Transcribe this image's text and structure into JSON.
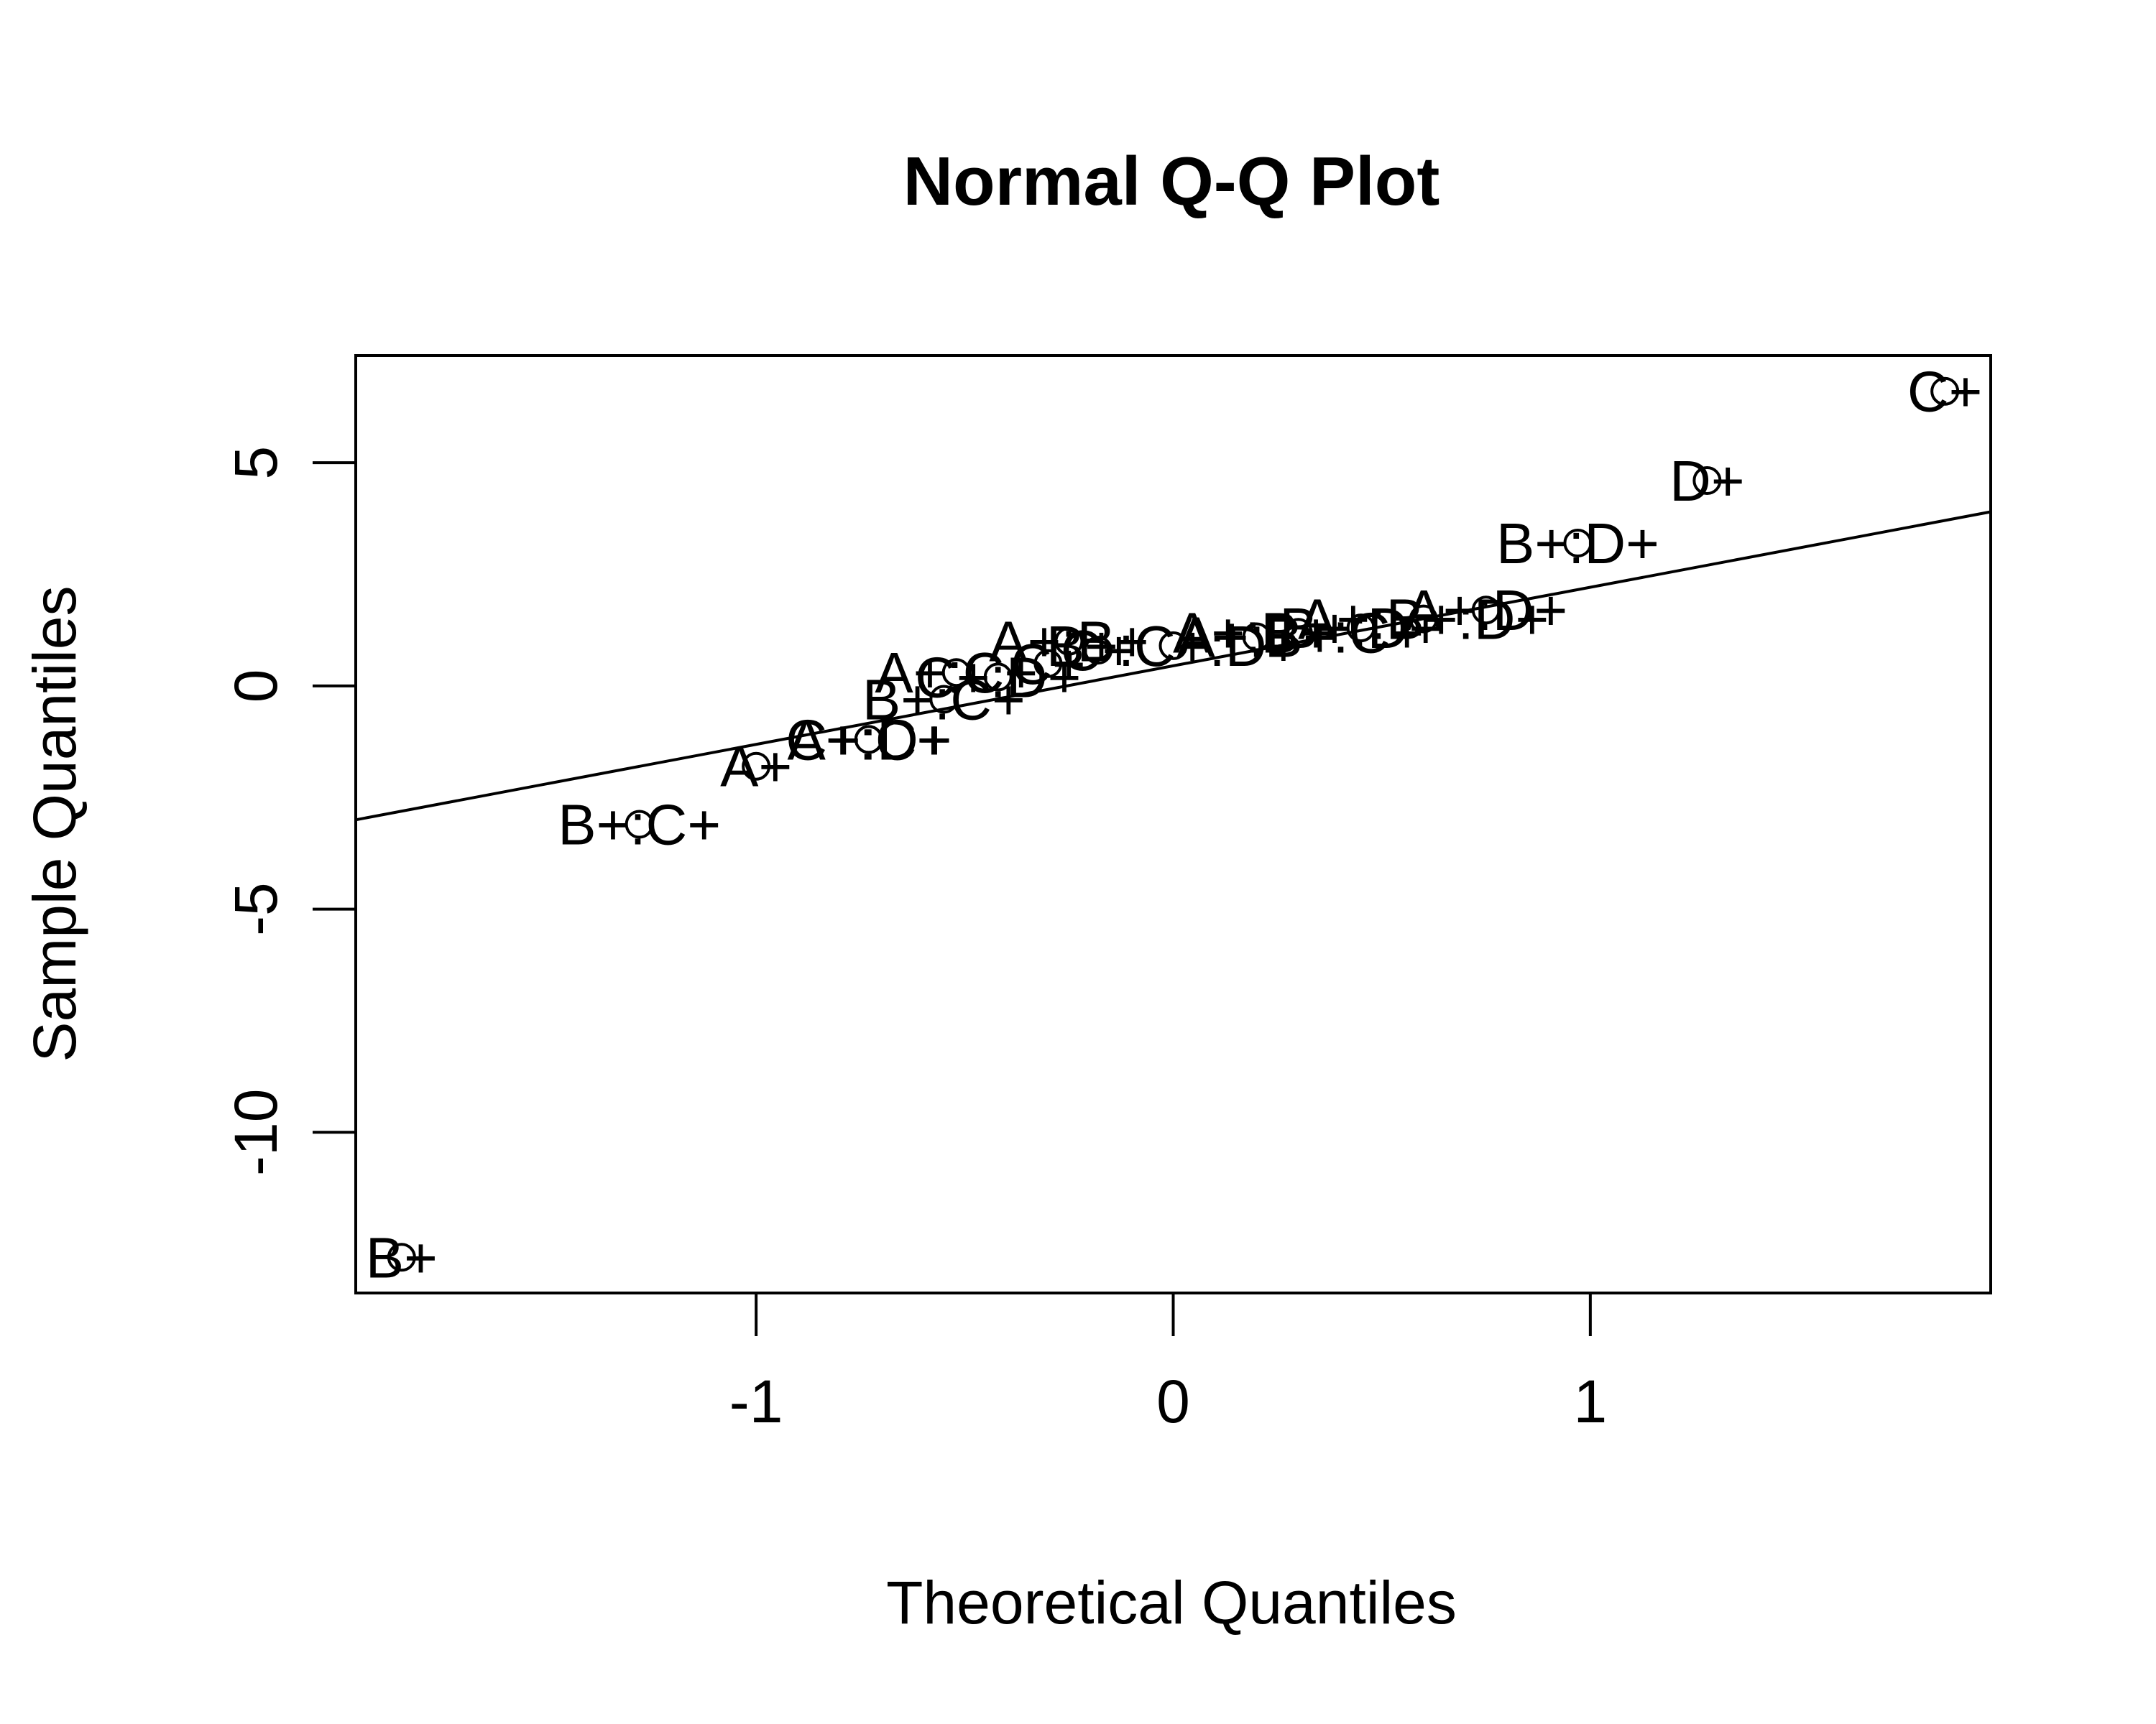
{
  "chart_data": {
    "type": "scatter",
    "title": "Normal Q-Q Plot",
    "xlabel": "Theoretical Quantiles",
    "ylabel": "Sample Quantiles",
    "xlim": [
      -1.96,
      1.96
    ],
    "ylim": [
      -13.6,
      7.4
    ],
    "x_ticks": [
      -1,
      0,
      1
    ],
    "x_tick_labels": [
      "-1",
      "0",
      "1"
    ],
    "y_ticks": [
      -10,
      -5,
      0,
      5
    ],
    "y_tick_labels": [
      "-10",
      "-5",
      "0",
      "5"
    ],
    "grid": false,
    "reference_line": {
      "x": [
        -1.96,
        1.96
      ],
      "y": [
        -3.0,
        3.9
      ]
    },
    "points": [
      {
        "label": "B+",
        "x": -1.85,
        "y": -12.8
      },
      {
        "label": "B+:C+",
        "x": -1.28,
        "y": -3.1
      },
      {
        "label": "A+",
        "x": -1.0,
        "y": -1.8
      },
      {
        "label": "A+:C+",
        "x": -0.73,
        "y": -1.2
      },
      {
        "label": "C+:D+",
        "x": -0.73,
        "y": -1.2
      },
      {
        "label": "B+:C+",
        "x": -0.55,
        "y": -0.3
      },
      {
        "label": "A+:C+",
        "x": -0.52,
        "y": 0.3
      },
      {
        "label": "C+:D+",
        "x": -0.42,
        "y": 0.2
      },
      {
        "label": "C+",
        "x": -0.3,
        "y": 0.5
      },
      {
        "label": "A+:B+",
        "x": -0.25,
        "y": 1.0
      },
      {
        "label": "C+",
        "x": -0.18,
        "y": 0.8
      },
      {
        "label": "B+:C+:D+",
        "x": 0.0,
        "y": 0.9
      },
      {
        "label": "A+:B+",
        "x": 0.2,
        "y": 1.1
      },
      {
        "label": "A+:B+:C+",
        "x": 0.3,
        "y": 1.2
      },
      {
        "label": "B+:D+",
        "x": 0.45,
        "y": 1.3
      },
      {
        "label": "A+:B+:D+",
        "x": 0.6,
        "y": 1.5
      },
      {
        "label": "A+:D+",
        "x": 0.75,
        "y": 1.7
      },
      {
        "label": "B+:D+",
        "x": 0.97,
        "y": 3.2
      },
      {
        "label": "D+",
        "x": 1.28,
        "y": 4.6
      },
      {
        "label": "C+",
        "x": 1.85,
        "y": 6.6
      }
    ]
  }
}
